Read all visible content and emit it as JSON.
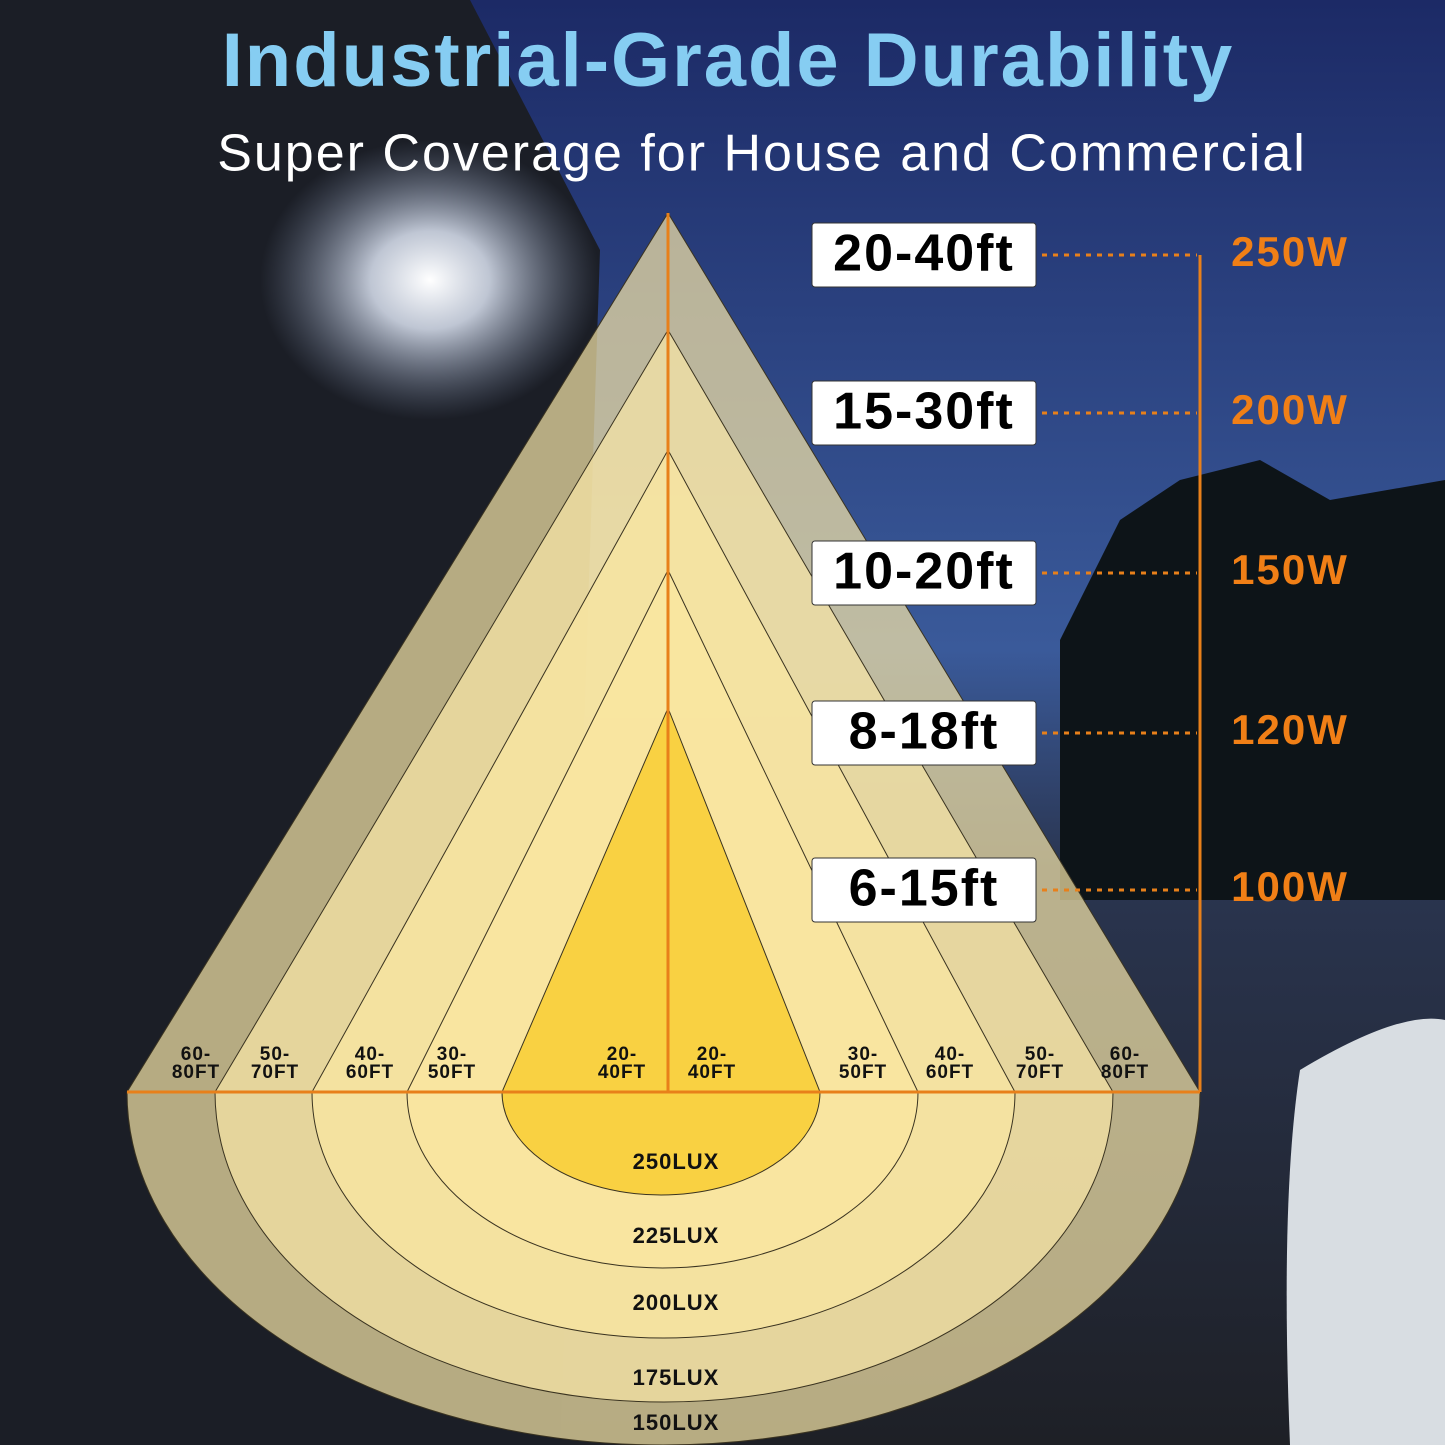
{
  "header": {
    "title": "Industrial-Grade Durability",
    "subtitle": "Super Coverage for House and Commercial"
  },
  "tiers": [
    {
      "power": "250W",
      "height": "20-40ft",
      "width": [
        "60-",
        "80FT"
      ],
      "lux": "150LUX"
    },
    {
      "power": "200W",
      "height": "15-30ft",
      "width": [
        "50-",
        "70FT"
      ],
      "lux": "175LUX"
    },
    {
      "power": "150W",
      "height": "10-20ft",
      "width": [
        "40-",
        "60FT"
      ],
      "lux": "200LUX"
    },
    {
      "power": "120W",
      "height": "8-18ft",
      "width": [
        "30-",
        "50FT"
      ],
      "lux": "225LUX"
    },
    {
      "power": "100W",
      "height": "6-15ft",
      "width": [
        "20-",
        "40FT"
      ],
      "lux": "250LUX"
    }
  ]
}
